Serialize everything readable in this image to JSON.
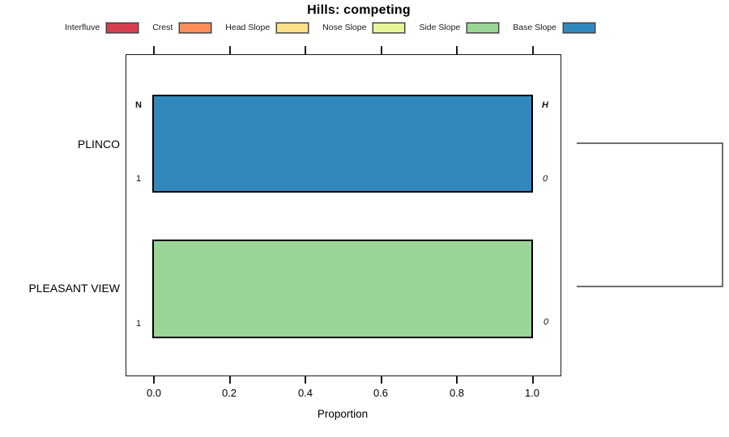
{
  "title": "Hills: competing",
  "chart_data": {
    "type": "bar",
    "orientation": "horizontal",
    "title": "Hills: competing",
    "xlabel": "Proportion",
    "xlim": [
      0,
      1
    ],
    "x_ticks": [
      "0.0",
      "0.2",
      "0.4",
      "0.6",
      "0.8",
      "1.0"
    ],
    "grid": false,
    "legend_position": "top",
    "legend": [
      {
        "label": "Interfluve",
        "color": "#d53e4f"
      },
      {
        "label": "Crest",
        "color": "#fc8d59"
      },
      {
        "label": "Head Slope",
        "color": "#fee08b"
      },
      {
        "label": "Nose Slope",
        "color": "#e6f598"
      },
      {
        "label": "Side Slope",
        "color": "#99d594"
      },
      {
        "label": "Base Slope",
        "color": "#3288bd"
      }
    ],
    "categories": [
      "PLINCO",
      "PLEASANT VIEW"
    ],
    "bars": [
      {
        "category": "PLINCO",
        "segment": "Base Slope",
        "value": 1.0,
        "color": "#3288bd",
        "annotations": {
          "left_top": "N",
          "left_bottom": "1",
          "right_top": "H",
          "right_bottom": "0"
        }
      },
      {
        "category": "PLEASANT VIEW",
        "segment": "Side Slope",
        "value": 1.0,
        "color": "#99d594",
        "annotations": {
          "left_bottom": "1",
          "right_bottom": "0"
        }
      }
    ],
    "dendrogram": {
      "joins": [
        "PLINCO",
        "PLEASANT VIEW"
      ],
      "color": "#6e6e6e"
    }
  }
}
